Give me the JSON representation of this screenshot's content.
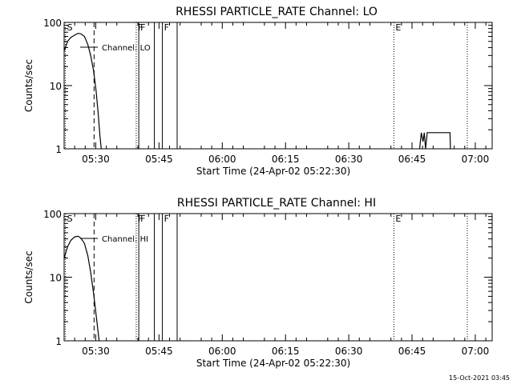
{
  "chart_data": [
    {
      "type": "line",
      "title": "RHESSI PARTICLE_RATE Channel: LO",
      "xlabel": "Start Time (24-Apr-02 05:22:30)",
      "ylabel": "Counts/sec",
      "yscale": "log",
      "ylim": [
        1,
        100
      ],
      "xlim_minutes": [
        0,
        101.5
      ],
      "y_tick_labels": [
        "1",
        "10",
        "100"
      ],
      "y_tick_values": [
        1,
        10,
        100
      ],
      "x_tick_labels": [
        "05:30",
        "05:45",
        "06:00",
        "06:15",
        "06:30",
        "06:45",
        "07:00"
      ],
      "x_tick_minutes": [
        7.5,
        22.5,
        37.5,
        52.5,
        67.5,
        82.5,
        97.5
      ],
      "legend": "Channel: LO",
      "series": [
        {
          "name": "Channel: LO",
          "segments": [
            [
              [
                0,
                35
              ],
              [
                0.8,
                50
              ],
              [
                1.6,
                58
              ],
              [
                2.5,
                63
              ],
              [
                3.3,
                67
              ],
              [
                4,
                66
              ],
              [
                4.8,
                60
              ],
              [
                5.6,
                45
              ],
              [
                6.3,
                30
              ],
              [
                7,
                17
              ],
              [
                7.6,
                8
              ],
              [
                8.1,
                3.5
              ],
              [
                8.5,
                1.6
              ],
              [
                8.8,
                1
              ]
            ],
            [
              [
                84.3,
                1
              ],
              [
                84.7,
                1.8
              ],
              [
                85.1,
                1.3
              ],
              [
                85.4,
                1.8
              ],
              [
                85.7,
                1
              ],
              [
                86.1,
                1.8
              ],
              [
                91.5,
                1.8
              ],
              [
                91.6,
                1
              ]
            ]
          ]
        }
      ],
      "markers": [
        {
          "label": "S",
          "minute": 0.3,
          "style": "dotted"
        },
        {
          "label": "",
          "minute": 7.1,
          "style": "dashed"
        },
        {
          "label": "F",
          "minute": 17.1,
          "style": "dotted"
        },
        {
          "label": "F",
          "minute": 17.7,
          "style": "solid"
        },
        {
          "label": "",
          "minute": 21.4,
          "style": "solid"
        },
        {
          "label": "F",
          "minute": 23.3,
          "style": "solid"
        },
        {
          "label": "",
          "minute": 26.8,
          "style": "solid"
        },
        {
          "label": "E",
          "minute": 78.2,
          "style": "dotted"
        },
        {
          "label": "",
          "minute": 95.6,
          "style": "dotted"
        }
      ]
    },
    {
      "type": "line",
      "title": "RHESSI PARTICLE_RATE Channel: HI",
      "xlabel": "Start Time (24-Apr-02 05:22:30)",
      "ylabel": "Counts/sec",
      "yscale": "log",
      "ylim": [
        1,
        100
      ],
      "xlim_minutes": [
        0,
        101.5
      ],
      "y_tick_labels": [
        "1",
        "10",
        "100"
      ],
      "y_tick_values": [
        1,
        10,
        100
      ],
      "x_tick_labels": [
        "05:30",
        "05:45",
        "06:00",
        "06:15",
        "06:30",
        "06:45",
        "07:00"
      ],
      "x_tick_minutes": [
        7.5,
        22.5,
        37.5,
        52.5,
        67.5,
        82.5,
        97.5
      ],
      "legend": "Channel: HI",
      "series": [
        {
          "name": "Channel: HI",
          "segments": [
            [
              [
                0,
                20
              ],
              [
                0.8,
                30
              ],
              [
                1.6,
                38
              ],
              [
                2.5,
                43
              ],
              [
                3.3,
                44
              ],
              [
                4,
                41
              ],
              [
                4.8,
                34
              ],
              [
                5.6,
                22
              ],
              [
                6.3,
                12
              ],
              [
                7,
                5.5
              ],
              [
                7.6,
                2.5
              ],
              [
                8.1,
                1.3
              ],
              [
                8.3,
                1
              ]
            ]
          ]
        }
      ],
      "markers": [
        {
          "label": "S",
          "minute": 0.3,
          "style": "dotted"
        },
        {
          "label": "",
          "minute": 7.1,
          "style": "dashed"
        },
        {
          "label": "F",
          "minute": 17.1,
          "style": "dotted"
        },
        {
          "label": "F",
          "minute": 17.7,
          "style": "solid"
        },
        {
          "label": "",
          "minute": 21.4,
          "style": "solid"
        },
        {
          "label": "F",
          "minute": 23.3,
          "style": "solid"
        },
        {
          "label": "",
          "minute": 26.8,
          "style": "solid"
        },
        {
          "label": "E",
          "minute": 78.2,
          "style": "dotted"
        },
        {
          "label": "",
          "minute": 95.6,
          "style": "dotted"
        }
      ]
    }
  ],
  "footer": {
    "timestamp": "15-Oct-2021 03:45"
  },
  "colors": {
    "background": "#ffffff",
    "foreground": "#000000"
  }
}
